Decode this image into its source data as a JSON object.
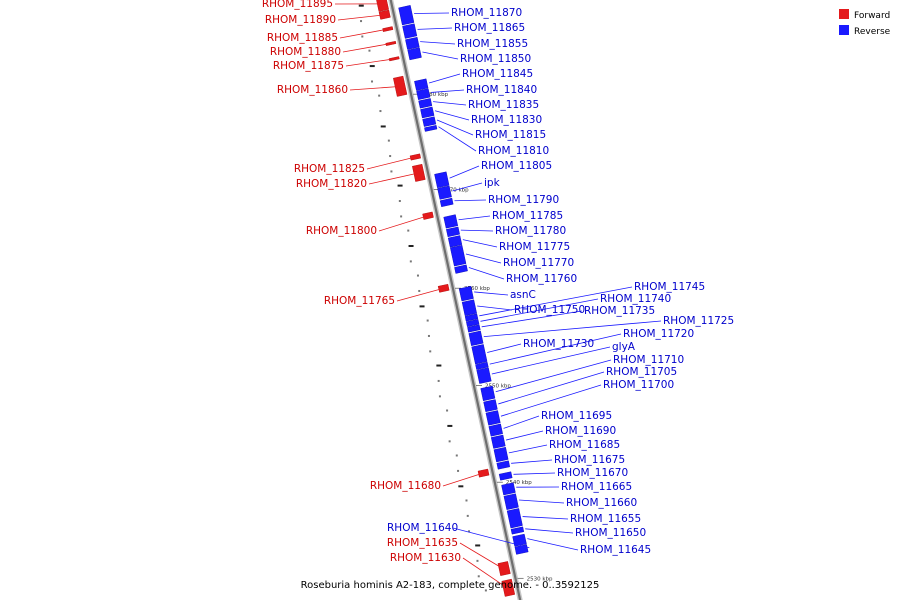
{
  "caption": "Roseburia hominis A2-183, complete genome. - 0..3592125",
  "legend": [
    {
      "label": "Forward",
      "color": "#e41a1c"
    },
    {
      "label": "Reverse",
      "color": "#1a1aff"
    }
  ],
  "colors": {
    "forward": "#e41a1c",
    "reverse": "#1a1aff",
    "axis": "#888888"
  },
  "kbp_marks": [
    {
      "label": "2580 kbp",
      "pos": 0.169
    },
    {
      "label": "2570 kbp",
      "pos": 0.325
    },
    {
      "label": "2560 kbp",
      "pos": 0.486
    },
    {
      "label": "2550 kbp",
      "pos": 0.645
    },
    {
      "label": "2540 kbp",
      "pos": 0.803
    },
    {
      "label": "2530 kbp",
      "pos": 0.96
    }
  ],
  "genes": [
    {
      "name": "RHOM_11895",
      "strand": "forward",
      "pos": 0.005,
      "len": 0.022
    },
    {
      "name": "RHOM_11890",
      "strand": "forward",
      "pos": 0.028,
      "len": 0.012
    },
    {
      "name": "RHOM_11885",
      "strand": "forward",
      "pos": 0.055,
      "len": 0.005
    },
    {
      "name": "RHOM_11880",
      "strand": "forward",
      "pos": 0.079,
      "len": 0.004
    },
    {
      "name": "RHOM_11875",
      "strand": "forward",
      "pos": 0.104,
      "len": 0.004
    },
    {
      "name": "RHOM_11860",
      "strand": "forward",
      "pos": 0.136,
      "len": 0.03
    },
    {
      "name": "RHOM_11825",
      "strand": "forward",
      "pos": 0.263,
      "len": 0.007
    },
    {
      "name": "RHOM_11820",
      "strand": "forward",
      "pos": 0.28,
      "len": 0.025
    },
    {
      "name": "RHOM_11800",
      "strand": "forward",
      "pos": 0.358,
      "len": 0.009
    },
    {
      "name": "RHOM_11765",
      "strand": "forward",
      "pos": 0.476,
      "len": 0.01
    },
    {
      "name": "RHOM_11680",
      "strand": "forward",
      "pos": 0.778,
      "len": 0.01
    },
    {
      "name": "RHOM_11635",
      "strand": "forward",
      "pos": 0.929,
      "len": 0.02
    },
    {
      "name": "RHOM_11630",
      "strand": "forward",
      "pos": 0.958,
      "len": 0.025
    },
    {
      "name": "RHOM_11870",
      "strand": "reverse",
      "pos": 0.028,
      "len": 0.028
    },
    {
      "name": "RHOM_11865",
      "strand": "reverse",
      "pos": 0.058,
      "len": 0.02
    },
    {
      "name": "RHOM_11855",
      "strand": "reverse",
      "pos": 0.08,
      "len": 0.016
    },
    {
      "name": "RHOM_11850",
      "strand": "reverse",
      "pos": 0.097,
      "len": 0.016
    },
    {
      "name": "RHOM_11845",
      "strand": "reverse",
      "pos": 0.148,
      "len": 0.015
    },
    {
      "name": "RHOM_11840",
      "strand": "reverse",
      "pos": 0.164,
      "len": 0.014
    },
    {
      "name": "RHOM_11835",
      "strand": "reverse",
      "pos": 0.18,
      "len": 0.012
    },
    {
      "name": "RHOM_11830",
      "strand": "reverse",
      "pos": 0.194,
      "len": 0.014
    },
    {
      "name": "RHOM_11815",
      "strand": "reverse",
      "pos": 0.21,
      "len": 0.012
    },
    {
      "name": "RHOM_11810",
      "strand": "reverse",
      "pos": 0.224,
      "len": 0.006
    },
    {
      "name": "RHOM_11805",
      "strand": "reverse",
      "pos": 0.3,
      "len": 0.022
    },
    {
      "name": "ipk",
      "strand": "reverse",
      "pos": 0.323,
      "len": 0.018
    },
    {
      "name": "RHOM_11790",
      "strand": "reverse",
      "pos": 0.343,
      "len": 0.01
    },
    {
      "name": "RHOM_11785",
      "strand": "reverse",
      "pos": 0.37,
      "len": 0.018
    },
    {
      "name": "RHOM_11780",
      "strand": "reverse",
      "pos": 0.39,
      "len": 0.012
    },
    {
      "name": "RHOM_11775",
      "strand": "reverse",
      "pos": 0.404,
      "len": 0.015
    },
    {
      "name": "RHOM_11770",
      "strand": "reverse",
      "pos": 0.42,
      "len": 0.03
    },
    {
      "name": "RHOM_11760",
      "strand": "reverse",
      "pos": 0.452,
      "len": 0.01
    },
    {
      "name": "asnC",
      "strand": "reverse",
      "pos": 0.487,
      "len": 0.02
    },
    {
      "name": "RHOM_11750",
      "strand": "reverse",
      "pos": 0.509,
      "len": 0.022
    },
    {
      "name": "RHOM_11745",
      "strand": "reverse",
      "pos": 0.532,
      "len": 0.008
    },
    {
      "name": "RHOM_11740",
      "strand": "reverse",
      "pos": 0.541,
      "len": 0.008
    },
    {
      "name": "RHOM_11735",
      "strand": "reverse",
      "pos": 0.55,
      "len": 0.008
    },
    {
      "name": "RHOM_11725",
      "strand": "reverse",
      "pos": 0.56,
      "len": 0.02
    },
    {
      "name": "RHOM_11730",
      "strand": "reverse",
      "pos": 0.582,
      "len": 0.028
    },
    {
      "name": "RHOM_11720",
      "strand": "reverse",
      "pos": 0.611,
      "len": 0.008
    },
    {
      "name": "glyA",
      "strand": "reverse",
      "pos": 0.62,
      "len": 0.022
    },
    {
      "name": "RHOM_11710",
      "strand": "reverse",
      "pos": 0.65,
      "len": 0.02
    },
    {
      "name": "RHOM_11705",
      "strand": "reverse",
      "pos": 0.672,
      "len": 0.016
    },
    {
      "name": "RHOM_11700",
      "strand": "reverse",
      "pos": 0.69,
      "len": 0.02
    },
    {
      "name": "RHOM_11695",
      "strand": "reverse",
      "pos": 0.712,
      "len": 0.016
    },
    {
      "name": "RHOM_11690",
      "strand": "reverse",
      "pos": 0.73,
      "len": 0.018
    },
    {
      "name": "RHOM_11685",
      "strand": "reverse",
      "pos": 0.75,
      "len": 0.02
    },
    {
      "name": "RHOM_11675",
      "strand": "reverse",
      "pos": 0.772,
      "len": 0.01
    },
    {
      "name": "RHOM_11670",
      "strand": "reverse",
      "pos": 0.79,
      "len": 0.01
    },
    {
      "name": "RHOM_11665",
      "strand": "reverse",
      "pos": 0.808,
      "len": 0.016
    },
    {
      "name": "RHOM_11660",
      "strand": "reverse",
      "pos": 0.826,
      "len": 0.022
    },
    {
      "name": "RHOM_11655",
      "strand": "reverse",
      "pos": 0.85,
      "len": 0.028
    },
    {
      "name": "RHOM_11650",
      "strand": "reverse",
      "pos": 0.88,
      "len": 0.008
    },
    {
      "name": "RHOM_11645",
      "strand": "reverse",
      "pos": 0.892,
      "len": 0.016
    },
    {
      "name": "RHOM_11640",
      "strand": "reverse",
      "pos": 0.909,
      "len": 0.012
    }
  ]
}
